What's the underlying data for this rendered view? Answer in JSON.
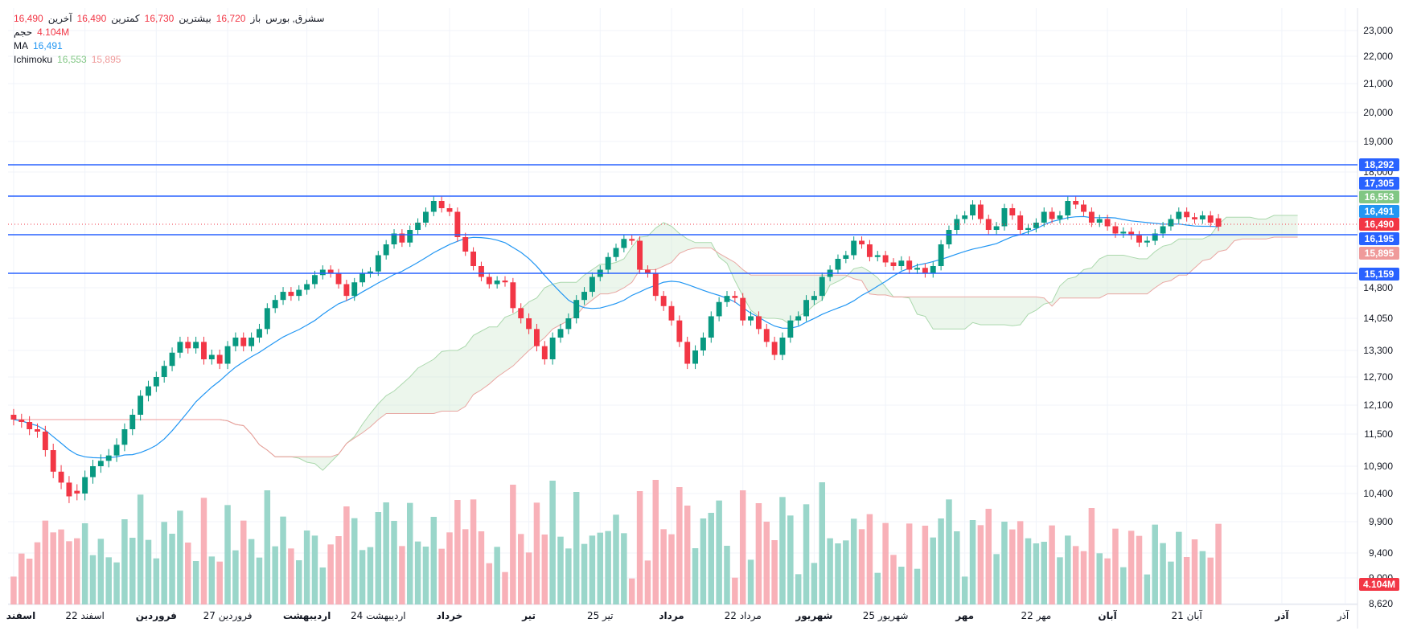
{
  "chart_data": {
    "type": "candlestick",
    "symbol": "سشرق, بورس",
    "ohlc_header": {
      "open_label": "باز",
      "open": "16,720",
      "high_label": "بیشترین",
      "high": "16,730",
      "low_label": "کمترین",
      "low": "16,490",
      "close_label": "آخرین",
      "close": "16,490"
    },
    "volume_legend": {
      "label": "حجم",
      "value": "4.104M"
    },
    "ma_legend": {
      "label": "MA",
      "value": "16,491"
    },
    "ichimoku_legend": {
      "label": "Ichimoku",
      "value_a": "16,553",
      "value_b": "15,895"
    },
    "y_ticks": [
      "23,000",
      "22,000",
      "21,000",
      "20,000",
      "19,000",
      "18,000",
      "14,800",
      "14,050",
      "13,300",
      "12,700",
      "12,100",
      "11,500",
      "10,900",
      "10,400",
      "9,900",
      "9,400",
      "9,000",
      "8,620"
    ],
    "y_tick_values": [
      23000,
      22000,
      21000,
      20000,
      19000,
      18000,
      14800,
      14050,
      13300,
      12700,
      12100,
      11500,
      10900,
      10400,
      9900,
      9400,
      9000,
      8620
    ],
    "x_ticks": [
      "اسفند",
      "22 اسفند",
      "فروردین",
      "27 فروردین",
      "اردیبهشت",
      "24 اردیبهشت",
      "خرداد",
      "تیر",
      "25 تیر",
      "مرداد",
      "22 مرداد",
      "شهریور",
      "25 شهریور",
      "مهر",
      "22 مهر",
      "آبان",
      "21 آبان",
      "آذر",
      "آذر"
    ],
    "x_tick_bold": [
      true,
      false,
      true,
      false,
      true,
      false,
      true,
      true,
      false,
      true,
      false,
      true,
      false,
      true,
      false,
      true,
      false,
      true,
      false
    ],
    "x_tick_index": [
      0,
      9,
      18,
      27,
      37,
      46,
      55,
      65,
      74,
      83,
      92,
      101,
      110,
      120,
      129,
      138,
      148,
      160,
      168
    ],
    "horizontal_levels": [
      18292,
      17305,
      16195,
      15159
    ],
    "price_labels": [
      {
        "value": 18292,
        "text": "18,292",
        "color": "#2962ff"
      },
      {
        "value": 17305,
        "text": "17,305",
        "color": "#2962ff"
      },
      {
        "value": 16553,
        "text": "16,553",
        "color": "#81c784"
      },
      {
        "value": 16491,
        "text": "16,491",
        "color": "#2196f3"
      },
      {
        "value": 16490,
        "text": "16,490",
        "color": "#f23645"
      },
      {
        "value": 16195,
        "text": "16,195",
        "color": "#2962ff"
      },
      {
        "value": 15895,
        "text": "15,895",
        "color": "#ef9a9a"
      },
      {
        "value": 15159,
        "text": "15,159",
        "color": "#2962ff"
      }
    ],
    "volume_label": {
      "text": "4.104M",
      "color": "#f23645"
    },
    "series_candles_close": [
      11800,
      11750,
      11600,
      11550,
      11200,
      10800,
      10600,
      10350,
      10400,
      10700,
      10900,
      11000,
      11100,
      11300,
      11600,
      11900,
      12300,
      12500,
      12700,
      12950,
      13250,
      13500,
      13350,
      13500,
      13100,
      13200,
      13000,
      13400,
      13600,
      13400,
      13600,
      13800,
      14300,
      14500,
      14700,
      14600,
      14750,
      14900,
      15150,
      15300,
      15200,
      14900,
      14600,
      14950,
      15200,
      15250,
      15700,
      16000,
      16300,
      16050,
      16400,
      16600,
      16900,
      17200,
      17000,
      16900,
      16200,
      15800,
      15400,
      15100,
      14900,
      15000,
      14950,
      14300,
      14050,
      13800,
      13400,
      13100,
      13600,
      13800,
      14050,
      14500,
      14700,
      15100,
      15300,
      15650,
      15900,
      16150,
      16100,
      15300,
      15200,
      14600,
      14350,
      14000,
      13500,
      13000,
      13300,
      13600,
      14100,
      14450,
      14600,
      14550,
      14000,
      14100,
      13800,
      13500,
      13200,
      13600,
      14000,
      14100,
      14500,
      14600,
      15100,
      15300,
      15600,
      15700,
      16100,
      16000,
      15650,
      15700,
      15500,
      15400,
      15550,
      15300,
      15350,
      15200,
      15400,
      16000,
      16400,
      16700,
      16800,
      17100,
      16700,
      16400,
      16500,
      17000,
      16800,
      16400,
      16450,
      16600,
      16900,
      16700,
      16800,
      17200,
      17100,
      16900,
      16600,
      16700,
      16500,
      16300,
      16350,
      16250,
      16050,
      16100,
      16300,
      16500,
      16700,
      16900,
      16750,
      16690,
      16800,
      16600,
      16490
    ],
    "series_candles_open": [
      11900,
      11800,
      11750,
      11600,
      11550,
      11200,
      10800,
      10600,
      10450,
      10400,
      10700,
      10900,
      11000,
      11100,
      11300,
      11600,
      11900,
      12300,
      12500,
      12700,
      12950,
      13250,
      13500,
      13350,
      13500,
      13100,
      13200,
      13000,
      13400,
      13600,
      13400,
      13600,
      13800,
      14300,
      14500,
      14700,
      14600,
      14750,
      14900,
      15150,
      15300,
      15200,
      14900,
      14600,
      14950,
      15200,
      15250,
      15700,
      16000,
      16300,
      16050,
      16400,
      16600,
      16900,
      17200,
      17000,
      16900,
      16200,
      15800,
      15400,
      15100,
      14900,
      15000,
      14950,
      14300,
      14050,
      13800,
      13400,
      13100,
      13600,
      13800,
      14050,
      14500,
      14700,
      15100,
      15300,
      15650,
      15900,
      16150,
      16100,
      15300,
      15200,
      14600,
      14350,
      14000,
      13500,
      13000,
      13300,
      13600,
      14100,
      14450,
      14600,
      14550,
      14000,
      14100,
      13800,
      13500,
      13200,
      13600,
      14000,
      14100,
      14500,
      14600,
      15100,
      15300,
      15600,
      15700,
      16100,
      16000,
      15650,
      15700,
      15500,
      15400,
      15550,
      15300,
      15350,
      15200,
      15400,
      16000,
      16400,
      16700,
      16800,
      17100,
      16700,
      16400,
      16500,
      17000,
      16800,
      16400,
      16450,
      16600,
      16900,
      16700,
      16800,
      17200,
      17100,
      16900,
      16600,
      16700,
      16500,
      16300,
      16350,
      16250,
      16050,
      16100,
      16300,
      16500,
      16700,
      16900,
      16750,
      16690,
      16800,
      16720
    ]
  }
}
